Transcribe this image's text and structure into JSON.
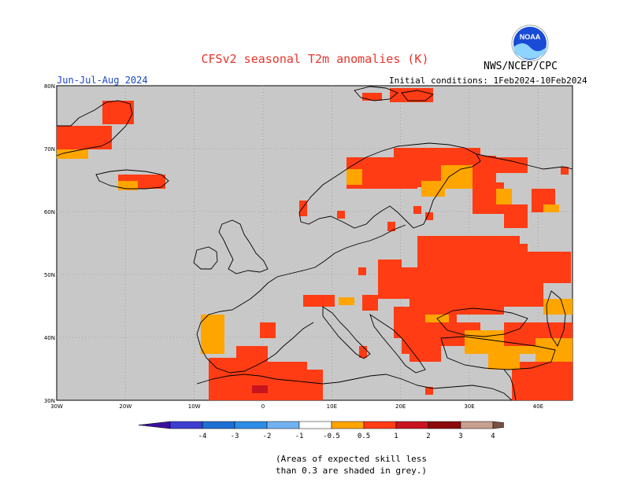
{
  "header": {
    "title": "CFSv2 seasonal T2m anomalies (K)",
    "season": "Jun-Jul-Aug 2024",
    "initial_conditions": "Initial conditions: 1Feb2024-10Feb2024",
    "agency": "NWS/NCEP/CPC",
    "logo_text": "NOAA"
  },
  "map": {
    "background_color": "#c8c8c8",
    "coast_color": "#000000",
    "lat_labels": [
      "80N",
      "70N",
      "60N",
      "50N",
      "40N",
      "30N"
    ],
    "lon_labels": [
      "30W",
      "20W",
      "10W",
      "0",
      "10E",
      "20E",
      "30E",
      "40E"
    ],
    "lat_range": [
      30,
      80
    ],
    "lon_range": [
      -30,
      45
    ]
  },
  "colorbar": {
    "labels": [
      "-4",
      "-3",
      "-2",
      "-1",
      "-0.5",
      "0.5",
      "1",
      "2",
      "3",
      "4"
    ],
    "colors": [
      "#3a0f9e",
      "#3d3fd0",
      "#1e6fd4",
      "#2e8de6",
      "#72b2f2",
      "#ffffff",
      "#ffa500",
      "#ff3c14",
      "#c8141e",
      "#8c0a0a",
      "#c8a090",
      "#7a5040"
    ]
  },
  "note": {
    "line1": "(Areas of expected skill less",
    "line2": "than 0.3 are shaded in grey.)"
  }
}
